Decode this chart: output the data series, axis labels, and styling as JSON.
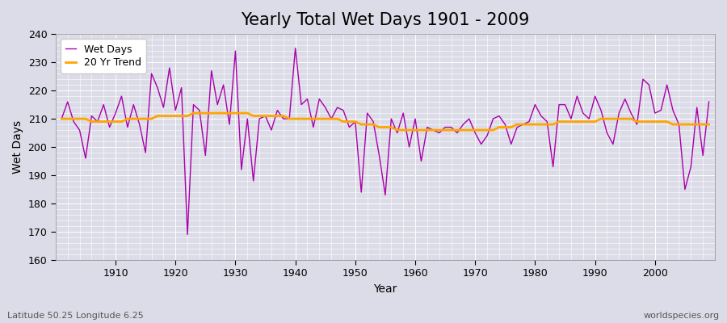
{
  "title": "Yearly Total Wet Days 1901 - 2009",
  "xlabel": "Year",
  "ylabel": "Wet Days",
  "bottom_left_label": "Latitude 50.25 Longitude 6.25",
  "bottom_right_label": "worldspecies.org",
  "years": [
    1901,
    1902,
    1903,
    1904,
    1905,
    1906,
    1907,
    1908,
    1909,
    1910,
    1911,
    1912,
    1913,
    1914,
    1915,
    1916,
    1917,
    1918,
    1919,
    1920,
    1921,
    1922,
    1923,
    1924,
    1925,
    1926,
    1927,
    1928,
    1929,
    1930,
    1931,
    1932,
    1933,
    1934,
    1935,
    1936,
    1937,
    1938,
    1939,
    1940,
    1941,
    1942,
    1943,
    1944,
    1945,
    1946,
    1947,
    1948,
    1949,
    1950,
    1951,
    1952,
    1953,
    1954,
    1955,
    1956,
    1957,
    1958,
    1959,
    1960,
    1961,
    1962,
    1963,
    1964,
    1965,
    1966,
    1967,
    1968,
    1969,
    1970,
    1971,
    1972,
    1973,
    1974,
    1975,
    1976,
    1977,
    1978,
    1979,
    1980,
    1981,
    1982,
    1983,
    1984,
    1985,
    1986,
    1987,
    1988,
    1989,
    1990,
    1991,
    1992,
    1993,
    1994,
    1995,
    1996,
    1997,
    1998,
    1999,
    2000,
    2001,
    2002,
    2003,
    2004,
    2005,
    2006,
    2007,
    2008,
    2009
  ],
  "wet_days": [
    210,
    216,
    209,
    206,
    196,
    211,
    209,
    215,
    207,
    212,
    218,
    207,
    215,
    208,
    198,
    226,
    221,
    214,
    228,
    213,
    221,
    169,
    215,
    213,
    197,
    227,
    215,
    222,
    208,
    234,
    192,
    210,
    188,
    210,
    211,
    206,
    213,
    210,
    210,
    235,
    215,
    217,
    207,
    217,
    214,
    210,
    214,
    213,
    207,
    209,
    184,
    212,
    209,
    197,
    183,
    210,
    205,
    212,
    200,
    210,
    195,
    207,
    206,
    205,
    207,
    207,
    205,
    208,
    210,
    205,
    201,
    204,
    210,
    211,
    208,
    201,
    207,
    208,
    209,
    215,
    211,
    209,
    193,
    215,
    215,
    210,
    218,
    212,
    210,
    218,
    213,
    205,
    201,
    212,
    217,
    212,
    208,
    224,
    222,
    212,
    213,
    222,
    213,
    208,
    185,
    193,
    214,
    197,
    216
  ],
  "trend": [
    210,
    210,
    210,
    210,
    210,
    209,
    209,
    209,
    209,
    209,
    209,
    210,
    210,
    210,
    210,
    210,
    211,
    211,
    211,
    211,
    211,
    211,
    212,
    212,
    212,
    212,
    212,
    212,
    212,
    212,
    212,
    212,
    211,
    211,
    211,
    211,
    211,
    211,
    210,
    210,
    210,
    210,
    210,
    210,
    210,
    210,
    210,
    209,
    209,
    209,
    208,
    208,
    208,
    207,
    207,
    207,
    206,
    206,
    206,
    206,
    206,
    206,
    206,
    206,
    206,
    206,
    206,
    206,
    206,
    206,
    206,
    206,
    206,
    207,
    207,
    207,
    208,
    208,
    208,
    208,
    208,
    208,
    208,
    209,
    209,
    209,
    209,
    209,
    209,
    209,
    210,
    210,
    210,
    210,
    210,
    210,
    209,
    209,
    209,
    209,
    209,
    209,
    208,
    208,
    208,
    208,
    208,
    208,
    208
  ],
  "wet_days_color": "#aa00aa",
  "trend_color": "#ffa500",
  "background_color": "#dcdce8",
  "grid_color": "#ffffff",
  "ylim": [
    160,
    240
  ],
  "yticks": [
    160,
    170,
    180,
    190,
    200,
    210,
    220,
    230,
    240
  ],
  "xlim_min": 1900,
  "xlim_max": 2010,
  "xticks": [
    1910,
    1920,
    1930,
    1940,
    1950,
    1960,
    1970,
    1980,
    1990,
    2000
  ],
  "title_fontsize": 15,
  "label_fontsize": 10,
  "legend_fontsize": 9
}
